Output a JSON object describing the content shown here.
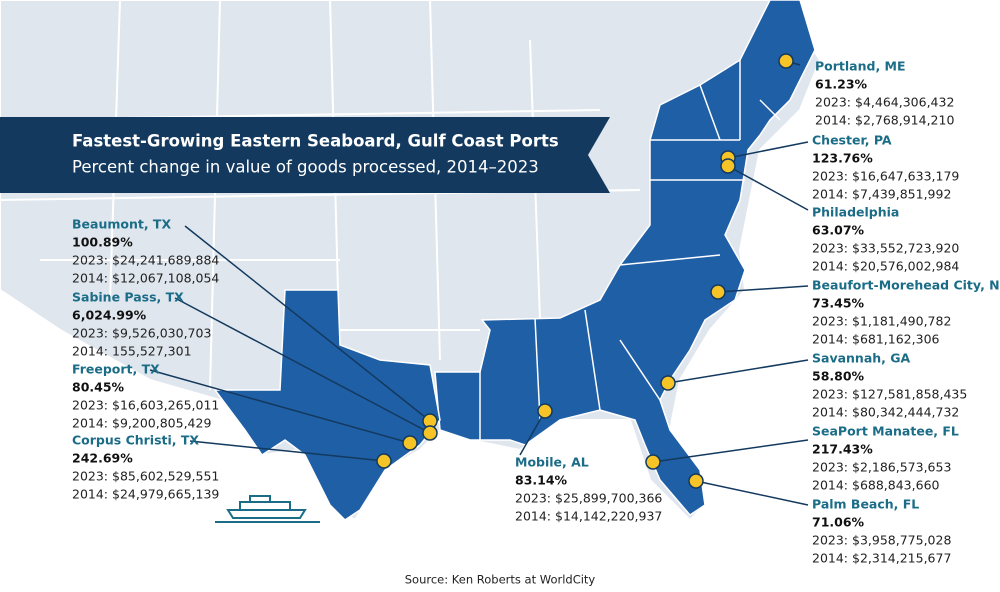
{
  "header": {
    "title": "Fastest-Growing Eastern Seaboard, Gulf Coast Ports",
    "subtitle": "Percent change in value of goods processed, 2014–2023"
  },
  "ports": [
    {
      "name": "Beaumont, TX",
      "change": "100.89%",
      "value_2023": "2023: $24,241,689,884",
      "value_2014": "2014: $12,067,108,054"
    },
    {
      "name": "Sabine Pass, TX",
      "change": "6,024.99%",
      "value_2023": "2023: $9,526,030,703",
      "value_2014": "2014: 155,527,301"
    },
    {
      "name": "Freeport, TX",
      "change": "80.45%",
      "value_2023": "2023: $16,603,265,011",
      "value_2014": "2014: $9,200,805,429"
    },
    {
      "name": "Corpus Christi, TX",
      "change": "242.69%",
      "value_2023": "2023: $85,602,529,551",
      "value_2014": "2014: $24,979,665,139"
    },
    {
      "name": "Mobile, AL",
      "change": "83.14%",
      "value_2023": "2023: $25,899,700,366",
      "value_2014": "2014: $14,142,220,937"
    },
    {
      "name": "Portland, ME",
      "change": "61.23%",
      "value_2023": "2023: $4,464,306,432",
      "value_2014": "2014: $2,768,914,210"
    },
    {
      "name": "Chester, PA",
      "change": "123.76%",
      "value_2023": "2023: $16,647,633,179",
      "value_2014": "2014: $7,439,851,992"
    },
    {
      "name": "Philadelphia",
      "change": "63.07%",
      "value_2023": "2023: $33,552,723,920",
      "value_2014": "2014: $20,576,002,984"
    },
    {
      "name": "Beaufort-Morehead City, NC",
      "change": "73.45%",
      "value_2023": "2023: $1,181,490,782",
      "value_2014": "2014: $681,162,306"
    },
    {
      "name": "Savannah, GA",
      "change": "58.80%",
      "value_2023": "2023: $127,581,858,435",
      "value_2014": "2014: $80,342,444,732"
    },
    {
      "name": "SeaPort Manatee, FL",
      "change": "217.43%",
      "value_2023": "2023: $2,186,573,653",
      "value_2014": "2014: $688,843,660"
    },
    {
      "name": "Palm Beach, FL",
      "change": "71.06%",
      "value_2023": "2023: $3,958,775,028",
      "value_2014": "2014: $2,314,215,677"
    }
  ],
  "source": "Source: Ken Roberts at WorldCity"
}
